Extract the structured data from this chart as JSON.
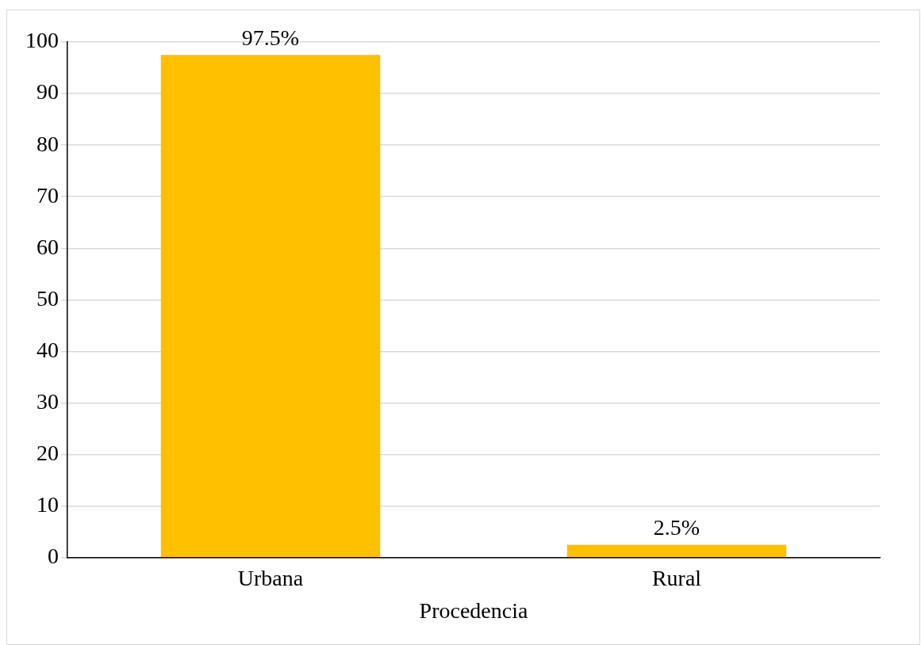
{
  "chart_data": {
    "type": "bar",
    "xlabel": "Procedencia",
    "categories": [
      "Urbana",
      "Rural"
    ],
    "values": [
      97.5,
      2.5
    ],
    "color": "#ffc000",
    "value_labels": [
      "97.5%",
      "2.5%"
    ],
    "ylim": [
      0,
      100
    ],
    "yticks": [
      0,
      10,
      20,
      30,
      40,
      50,
      60,
      70,
      80,
      90,
      100
    ],
    "grid": "y",
    "legend": false
  }
}
